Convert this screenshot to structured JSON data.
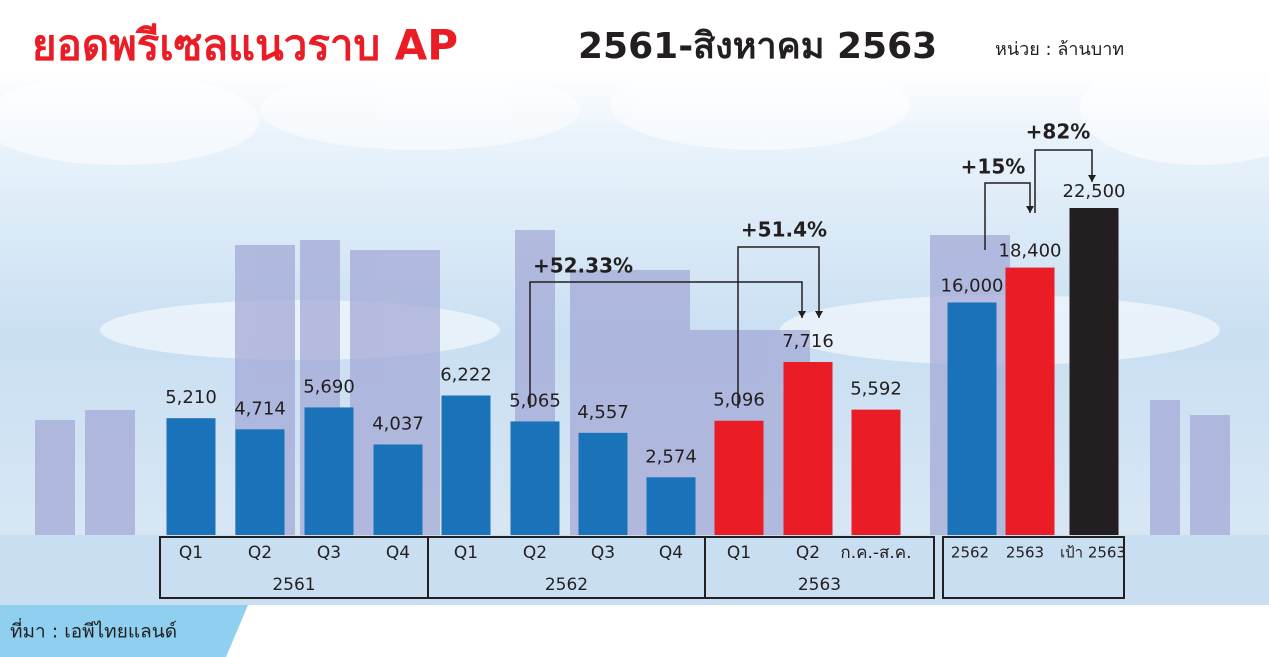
{
  "header": {
    "title": "ยอดพรีเซลแนวราบ AP",
    "subtitle": "2561-สิงหาคม 2563",
    "unit": "หน่วย : ล้านบาท"
  },
  "footer": {
    "source": "ที่มา : เอพีไทยแลนด์"
  },
  "chart_data": [
    {
      "type": "bar",
      "groups": [
        {
          "name": "2561",
          "color": "#1a73b9",
          "categories": [
            "Q1",
            "Q2",
            "Q3",
            "Q4"
          ],
          "values": [
            5210,
            4714,
            5690,
            4037
          ],
          "value_labels": [
            "5,210",
            "4,714",
            "5,690",
            "4,037"
          ]
        },
        {
          "name": "2562",
          "color": "#1a73b9",
          "categories": [
            "Q1",
            "Q2",
            "Q3",
            "Q4"
          ],
          "values": [
            6222,
            5065,
            4557,
            2574
          ],
          "value_labels": [
            "6,222",
            "5,065",
            "4,557",
            "2,574"
          ]
        },
        {
          "name": "2563",
          "color": "#ea1c25",
          "categories": [
            "Q1",
            "Q2",
            "ก.ค.-ส.ค."
          ],
          "values": [
            5096,
            7716,
            5592
          ],
          "value_labels": [
            "5,096",
            "7,716",
            "5,592"
          ]
        }
      ],
      "annotations": [
        "+52.33%",
        "+51.4%"
      ]
    },
    {
      "type": "bar",
      "categories": [
        "2562",
        "2563",
        "เป้า 2563"
      ],
      "values": [
        16000,
        18400,
        22500
      ],
      "value_labels": [
        "16,000",
        "18,400",
        "22,500"
      ],
      "colors": [
        "#1a73b9",
        "#ea1c25",
        "#231f20"
      ],
      "annotations": [
        "+15%",
        "+82%"
      ]
    }
  ]
}
